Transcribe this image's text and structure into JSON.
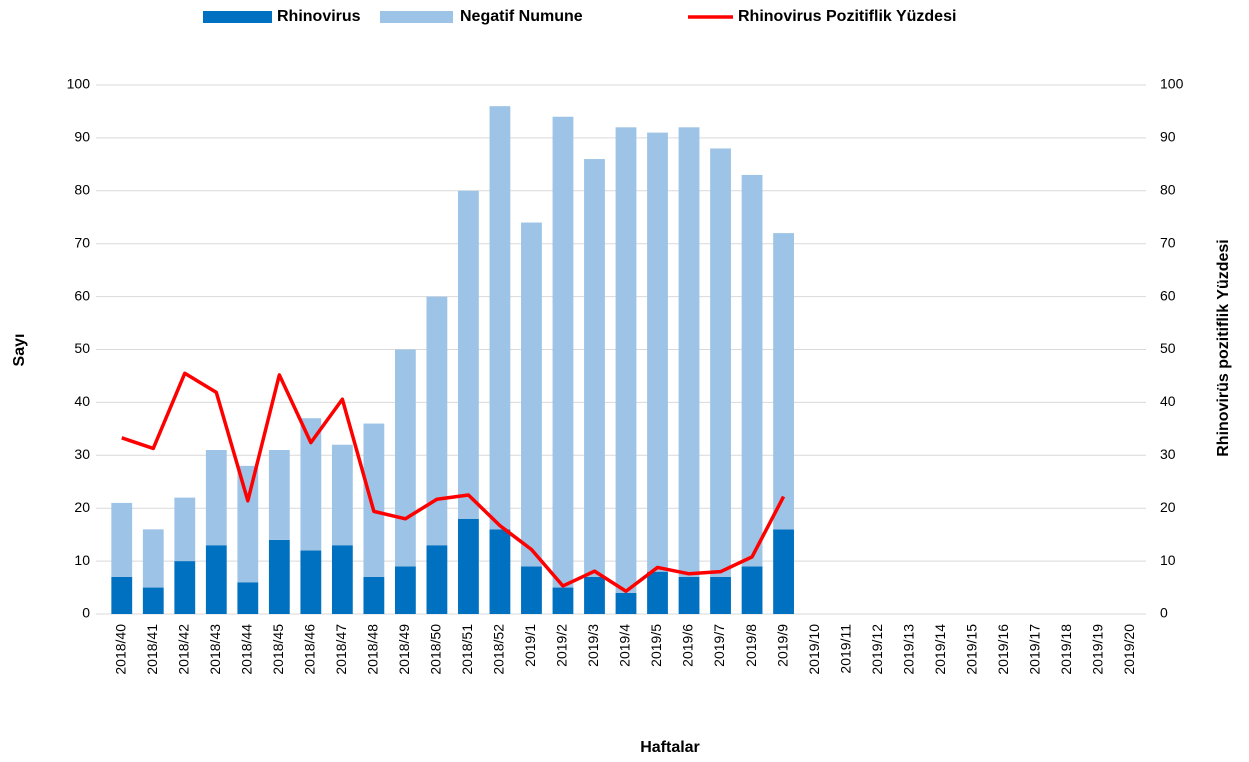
{
  "chart_data": {
    "type": "bar",
    "stacked": true,
    "x_label": "Haftalar",
    "y_label": "Sayı",
    "y2_label": "Rhinovirüs pozitiflik Yüzdesi",
    "categories": [
      "2018/40",
      "2018/41",
      "2018/42",
      "2018/43",
      "2018/44",
      "2018/45",
      "2018/46",
      "2018/47",
      "2018/48",
      "2018/49",
      "2018/50",
      "2018/51",
      "2018/52",
      "2019/1",
      "2019/2",
      "2019/3",
      "2019/4",
      "2019/5",
      "2019/6",
      "2019/7",
      "2019/8",
      "2019/9",
      "2019/10",
      "2019/11",
      "2019/12",
      "2019/13",
      "2019/14",
      "2019/15",
      "2019/16",
      "2019/17",
      "2019/18",
      "2019/19",
      "2019/20"
    ],
    "series": [
      {
        "name": "Rhinovirus",
        "type": "bar",
        "color": "#0070c0",
        "values": [
          7,
          5,
          10,
          13,
          6,
          14,
          12,
          13,
          7,
          9,
          13,
          18,
          16,
          9,
          5,
          7,
          4,
          8,
          7,
          7,
          9,
          16,
          null,
          null,
          null,
          null,
          null,
          null,
          null,
          null,
          null,
          null,
          null
        ]
      },
      {
        "name": "Negatif Numune",
        "type": "bar",
        "color": "#9dc3e6",
        "values": [
          14,
          11,
          12,
          18,
          22,
          17,
          25,
          19,
          29,
          41,
          47,
          62,
          80,
          65,
          89,
          79,
          88,
          83,
          85,
          81,
          74,
          56,
          null,
          null,
          null,
          null,
          null,
          null,
          null,
          null,
          null,
          null,
          null
        ]
      },
      {
        "name": "Rhinovirus Pozitiflik Yüzdesi",
        "type": "line",
        "axis": "y2",
        "color": "#ff0000",
        "values": [
          33.3,
          31.3,
          45.5,
          41.9,
          21.4,
          45.2,
          32.4,
          40.6,
          19.4,
          18,
          21.7,
          22.5,
          16.7,
          12.2,
          5.3,
          8.1,
          4.3,
          8.8,
          7.6,
          8,
          10.8,
          22.2,
          null,
          null,
          null,
          null,
          null,
          null,
          null,
          null,
          null,
          null,
          null
        ]
      }
    ],
    "ylim": [
      0,
      100
    ],
    "yticks": [
      0,
      10,
      20,
      30,
      40,
      50,
      60,
      70,
      80,
      90,
      100
    ],
    "y2lim": [
      0,
      100
    ],
    "y2ticks": [
      0,
      10,
      20,
      30,
      40,
      50,
      60,
      70,
      80,
      90,
      100
    ],
    "grid": true,
    "legend": "top"
  }
}
